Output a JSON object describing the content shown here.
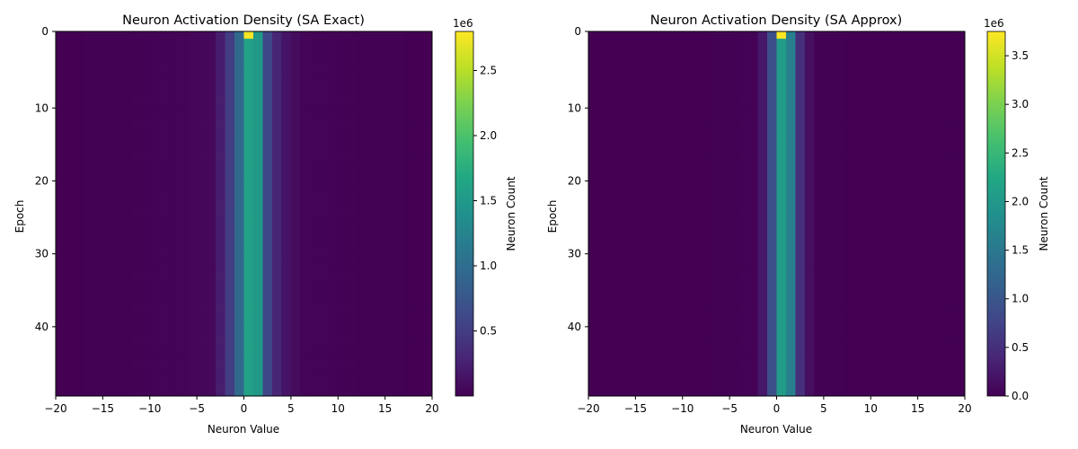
{
  "chart_data": [
    {
      "type": "heatmap",
      "title": "Neuron Activation Density (SA Exact)",
      "xlabel": "Neuron Value",
      "ylabel": "Epoch",
      "x_range": [
        -20,
        20
      ],
      "x_ticks": [
        -20,
        -15,
        -10,
        -5,
        0,
        5,
        10,
        15,
        20
      ],
      "x_tick_labels": [
        "−20",
        "−15",
        "−10",
        "−5",
        "0",
        "5",
        "10",
        "15",
        "20"
      ],
      "y_range": [
        0,
        49
      ],
      "y_ticks": [
        0,
        10,
        20,
        30,
        40
      ],
      "y_tick_labels": [
        "0",
        "10",
        "20",
        "30",
        "40"
      ],
      "bin_centers": [
        -3,
        -2,
        -1,
        0,
        1,
        2,
        3,
        4,
        5
      ],
      "bin_width": 1,
      "first_epoch_bins": [
        0.22,
        0.5,
        0.95,
        2.8,
        1.5,
        0.6,
        0.3,
        0.15,
        0.08
      ],
      "epoch_bins": [
        0.22,
        0.5,
        0.95,
        1.6,
        1.5,
        0.6,
        0.3,
        0.15,
        0.08
      ],
      "tail_level": 0.03,
      "tail_decay": 5.0,
      "colorbar": {
        "label": "Neuron Count",
        "multiplier": "1e6",
        "range": [
          0,
          2.8
        ],
        "ticks": [
          0.5,
          1.0,
          1.5,
          2.0,
          2.5
        ],
        "tick_labels": [
          "0.5",
          "1.0",
          "1.5",
          "2.0",
          "2.5"
        ]
      }
    },
    {
      "type": "heatmap",
      "title": "Neuron Activation Density (SA Approx)",
      "xlabel": "Neuron Value",
      "ylabel": "Epoch",
      "x_range": [
        -20,
        20
      ],
      "x_ticks": [
        -20,
        -15,
        -10,
        -5,
        0,
        5,
        10,
        15,
        20
      ],
      "x_tick_labels": [
        "−20",
        "−15",
        "−10",
        "−5",
        "0",
        "5",
        "10",
        "15",
        "20"
      ],
      "y_range": [
        0,
        49
      ],
      "y_ticks": [
        0,
        10,
        20,
        30,
        40
      ],
      "y_tick_labels": [
        "0",
        "10",
        "20",
        "30",
        "40"
      ],
      "bin_centers": [
        -2,
        -1,
        0,
        1,
        2,
        3
      ],
      "bin_width": 1,
      "first_epoch_bins": [
        0.25,
        0.9,
        3.75,
        1.6,
        0.5,
        0.15
      ],
      "epoch_bins": [
        0.25,
        0.9,
        2.05,
        1.6,
        0.5,
        0.15
      ],
      "tail_level": 0.015,
      "tail_decay": 3.0,
      "colorbar": {
        "label": "Neuron Count",
        "multiplier": "1e6",
        "range": [
          0,
          3.75
        ],
        "ticks": [
          0.0,
          0.5,
          1.0,
          1.5,
          2.0,
          2.5,
          3.0,
          3.5
        ],
        "tick_labels": [
          "0.0",
          "0.5",
          "1.0",
          "1.5",
          "2.0",
          "2.5",
          "3.0",
          "3.5"
        ]
      }
    }
  ]
}
